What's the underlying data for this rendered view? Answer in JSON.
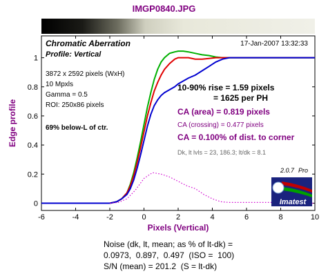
{
  "file_title": "IMGP0840.JPG",
  "chart_data": {
    "type": "line",
    "title": "Chromatic Aberration",
    "subtitle": "Profile: Vertical",
    "timestamp": "17-Jan-2007 13:32:33",
    "xlabel": "Pixels (Vertical)",
    "ylabel": "Edge profile",
    "xlim": [
      -6,
      10
    ],
    "ylim": [
      -0.05,
      1.15
    ],
    "x_ticks": [
      -6,
      -4,
      -2,
      0,
      2,
      4,
      6,
      8,
      10
    ],
    "y_ticks": [
      0,
      0.2,
      0.4,
      0.6,
      0.8,
      1
    ],
    "x_tick_labels": [
      "-6",
      "-4",
      "-2",
      "0",
      "2",
      "4",
      "6",
      "8",
      "10"
    ],
    "y_tick_labels": [
      "0",
      "0.2",
      "0.4",
      "0.6",
      "0.8",
      "1"
    ],
    "grid": false,
    "colors": {
      "red": "#e00000",
      "green": "#00b000",
      "blue": "#0000d0",
      "dotted": "#d000d0",
      "accent": "#800080"
    },
    "series": [
      {
        "color_key": "green",
        "x": [
          -6,
          -3,
          -2,
          -1.6,
          -1.3,
          -1.0,
          -0.8,
          -0.6,
          -0.4,
          -0.2,
          0,
          0.2,
          0.4,
          0.6,
          0.8,
          1.0,
          1.2,
          1.5,
          1.8,
          2.0,
          2.3,
          2.6,
          3.0,
          3.4,
          3.8,
          4.2,
          4.6,
          5,
          6,
          7,
          8,
          9,
          10
        ],
        "y": [
          0.0,
          0.0,
          0.0,
          0.01,
          0.03,
          0.07,
          0.13,
          0.21,
          0.31,
          0.42,
          0.54,
          0.66,
          0.76,
          0.85,
          0.92,
          0.97,
          1.0,
          1.03,
          1.04,
          1.045,
          1.045,
          1.04,
          1.03,
          1.02,
          1.015,
          1.005,
          1.0,
          1.0,
          1.0,
          1.0,
          1.0,
          1.0,
          1.0
        ]
      },
      {
        "color_key": "red",
        "x": [
          -6,
          -3,
          -2,
          -1.6,
          -1.3,
          -1.0,
          -0.8,
          -0.6,
          -0.4,
          -0.2,
          0,
          0.2,
          0.4,
          0.6,
          0.8,
          1.0,
          1.2,
          1.5,
          1.8,
          2.0,
          2.3,
          2.6,
          3.0,
          3.4,
          3.8,
          4.2,
          4.6,
          5,
          6,
          7,
          8,
          9,
          10
        ],
        "y": [
          0.0,
          0.0,
          0.0,
          0.01,
          0.03,
          0.07,
          0.12,
          0.19,
          0.28,
          0.38,
          0.49,
          0.6,
          0.69,
          0.77,
          0.83,
          0.88,
          0.92,
          0.96,
          0.99,
          1.0,
          1.0,
          1.0,
          0.99,
          0.99,
          0.995,
          1.0,
          1.0,
          1.0,
          1.0,
          1.0,
          1.0,
          1.0,
          1.0
        ]
      },
      {
        "color_key": "blue",
        "x": [
          -6,
          -3,
          -2,
          -1.6,
          -1.3,
          -1.0,
          -0.8,
          -0.6,
          -0.4,
          -0.2,
          0,
          0.2,
          0.4,
          0.6,
          0.8,
          1.0,
          1.2,
          1.5,
          1.8,
          2.0,
          2.3,
          2.6,
          3.0,
          3.4,
          3.8,
          4.2,
          4.6,
          5,
          6,
          7,
          8,
          9,
          10
        ],
        "y": [
          0.0,
          0.0,
          0.0,
          0.01,
          0.03,
          0.06,
          0.1,
          0.16,
          0.24,
          0.33,
          0.43,
          0.53,
          0.61,
          0.67,
          0.71,
          0.74,
          0.76,
          0.78,
          0.8,
          0.82,
          0.84,
          0.86,
          0.88,
          0.91,
          0.94,
          0.97,
          0.99,
          1.0,
          1.0,
          1.0,
          1.0,
          1.0,
          1.0
        ]
      },
      {
        "color_key": "dotted",
        "dashed": true,
        "x": [
          -2,
          -1.5,
          -1.0,
          -0.5,
          0,
          0.5,
          1.0,
          1.5,
          2.0,
          2.5,
          3.0,
          3.5,
          4.0,
          4.5,
          5,
          6,
          7,
          8,
          9,
          10
        ],
        "y": [
          0.0,
          0.005,
          0.03,
          0.09,
          0.17,
          0.21,
          0.2,
          0.18,
          0.15,
          0.12,
          0.1,
          0.06,
          0.03,
          0.01,
          0.005,
          0.005,
          0.005,
          0.005,
          0.0,
          0.0
        ]
      }
    ],
    "info_lines": [
      "3872 x 2592 pixels (WxH)",
      "10 Mpxls",
      "Gamma = 0.5",
      "ROI: 250x86 pixels"
    ],
    "info_bold": "69% below-L of ctr.",
    "rise_line1": "10-90% rise = 1.59 pixels",
    "rise_line2": "= 1625 per PH",
    "ca_area": "CA (area) = 0.819 pixels",
    "ca_crossing": "CA (crossing) = 0.477 pixels",
    "ca_dist": "CA = 0.100% of dist. to corner",
    "dk_line": "Dk, lt lvls = 23, 186.3;  lt/dk = 8.1",
    "version": "2.0.7",
    "version_tag": "Pro",
    "logo_text": "Imatest"
  },
  "noise": {
    "line1": "Noise (dk, lt, mean; as % of lt-dk) =",
    "line2": "0.0973,  0.897,  0.497  (ISO =  100)",
    "line3": "S/N (mean) = 201.2  (S = lt-dk)"
  }
}
